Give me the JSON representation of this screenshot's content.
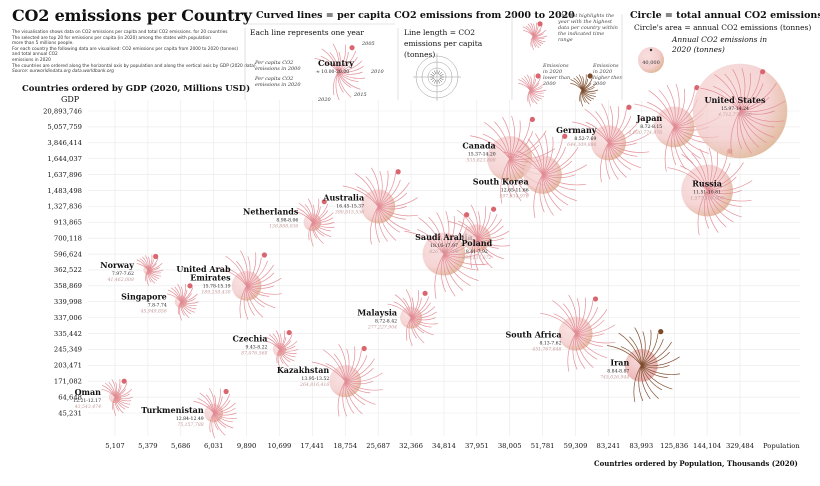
{
  "title": "CO2 emissions per Country",
  "description_lines": [
    "The visualisation shows data on CO2 emissions per capita and total CO2 emissions. for 20 countries",
    "The selected are top 20 for emissions per capita (in 2020) among the states with population",
    "more than 5 millions people.",
    "For each country the following data are visualised: CO2 emissions per capita from 2000 to 2020 (tonnes)",
    "and total annual CO2",
    "emissions in 2020",
    "The countries are ordered along the horizontal axis by population and along the vertical axis by GDP (2020 data)."
  ],
  "source": "Source: ourworldindata.org data.worldbank.org",
  "legend": {
    "curved_title": "Curved lines = per capita CO2 emissions from 2000 to 2020",
    "each_line": "Each line represents one year",
    "glyph_country": "Country",
    "glyph_range": "≈ 10.00-20.00",
    "glyph_2000_label": "Per capita CO2 emissions in 2000",
    "glyph_2020_label": "Per capita CO2 emissions in 2020",
    "years": [
      "2005",
      "2010",
      "2015",
      "2020"
    ],
    "line_length": "Line length = CO2 emissions per capita (tonnes)",
    "dot_note": "The dot highlights the year with the highest data per country within the indicated time range",
    "lower": "Emissions in 2020 lower than 2000",
    "higher": "Emissions in 2020 higher then 2000",
    "circle_title": "Circle = total annual CO2 emissions, 2020",
    "circle_area": "Circle's area = annual CO2 emissions (tonnes)",
    "annual_label": "Annual CO2 emissions in 2020 (tonnes)",
    "circle_example": "40,000"
  },
  "colors": {
    "pink": "#e28b93",
    "dark_dot": "#d9666f",
    "brown": "#7b4a2a",
    "tan": "#c9a079",
    "grid": "#e9e9e9"
  },
  "chart_data": {
    "type": "scatter",
    "title": "CO2 emissions per Country",
    "ylabel": "Countries ordered by GDP (2020, Millions USD)",
    "y_axis_label": "GDP",
    "xlabel": "Countries ordered by Population, Thousands (2020)",
    "x_axis_label": "Population",
    "x_ticks": [
      "5,107",
      "5,379",
      "5,686",
      "6,031",
      "9,890",
      "10,699",
      "17,441",
      "18,754",
      "25,687",
      "32,366",
      "34,814",
      "37,951",
      "38,005",
      "51,781",
      "59,309",
      "83,241",
      "83,993",
      "125,836",
      "144,104",
      "329,484"
    ],
    "y_ticks": [
      "45,231",
      "64,648",
      "171,082",
      "203,471",
      "245,349",
      "335,442",
      "337,006",
      "339,998",
      "358,869",
      "362,522",
      "596,624",
      "700,118",
      "913,865",
      "1,327,836",
      "1,483,498",
      "1,637,896",
      "1,644,037",
      "3,846,414",
      "5,057,759",
      "20,893,746"
    ],
    "countries": [
      {
        "name": "Oman",
        "range": "12.21-12.17",
        "total": "43,543,474",
        "x_rank": 0,
        "y_rank": 1,
        "size": 0.55,
        "trend": "lower"
      },
      {
        "name": "Norway",
        "range": "7.97-7.62",
        "total": "41,462,008",
        "x_rank": 1,
        "y_rank": 9,
        "size": 0.42,
        "trend": "lower"
      },
      {
        "name": "Singapore",
        "range": "7.8-7.74",
        "total": "45,949,856",
        "x_rank": 2,
        "y_rank": 7,
        "size": 0.55,
        "trend": "lower"
      },
      {
        "name": "Turkmenistan",
        "range": "12.84-12.49",
        "total": "75,157,788",
        "x_rank": 3,
        "y_rank": 0,
        "size": 0.85,
        "trend": "lower"
      },
      {
        "name": "United Arab Emirates",
        "range": "15.78-15.19",
        "total": "189,258,430",
        "x_rank": 4,
        "y_rank": 8,
        "size": 1.35,
        "trend": "lower"
      },
      {
        "name": "Czechia",
        "range": "9.43-8.22",
        "total": "87,076,568",
        "x_rank": 5,
        "y_rank": 4,
        "size": 0.6,
        "trend": "lower"
      },
      {
        "name": "Netherlands",
        "range": "8.98-8.06",
        "total": "138,888,036",
        "x_rank": 6,
        "y_rank": 12,
        "size": 0.8,
        "trend": "lower"
      },
      {
        "name": "Kazakhstan",
        "range": "13.95-13.52",
        "total": "264,816,416",
        "x_rank": 7,
        "y_rank": 2,
        "size": 1.45,
        "trend": "lower"
      },
      {
        "name": "Australia",
        "range": "16.45-15.37",
        "total": "390,815,536",
        "x_rank": 8,
        "y_rank": 13,
        "size": 1.55,
        "trend": "lower"
      },
      {
        "name": "Malaysia",
        "range": "8.72-8.42",
        "total": "277,227,904",
        "x_rank": 9,
        "y_rank": 6,
        "size": 1.0,
        "trend": "lower"
      },
      {
        "name": "Saudi Arabia",
        "range": "18.16-17.97",
        "total": "626,793,390",
        "x_rank": 10,
        "y_rank": 10,
        "size": 1.95,
        "trend": "lower"
      },
      {
        "name": "Poland",
        "range": "8.41-7.92",
        "total": "299,137,072",
        "x_rank": 11,
        "y_rank": 11,
        "size": 1.25,
        "trend": "lower"
      },
      {
        "name": "Canada",
        "range": "15.37-14.20",
        "total": "535,823,808",
        "x_rank": 12,
        "y_rank": 16,
        "size": 2.05,
        "trend": "lower"
      },
      {
        "name": "South Korea",
        "range": "12.65-11.66",
        "total": "597,634,976",
        "x_rank": 13,
        "y_rank": 15,
        "size": 1.75,
        "trend": "lower"
      },
      {
        "name": "South Africa",
        "range": "8.13-7.62",
        "total": "451,767,648",
        "x_rank": 14,
        "y_rank": 5,
        "size": 1.55,
        "trend": "lower"
      },
      {
        "name": "Germany",
        "range": "8.52-7.69",
        "total": "644,309,888",
        "x_rank": 15,
        "y_rank": 17,
        "size": 1.6,
        "trend": "lower"
      },
      {
        "name": "Iran",
        "range": "8.84-8.87",
        "total": "745,026,944",
        "x_rank": 16,
        "y_rank": 3,
        "size": 1.5,
        "trend": "higher"
      },
      {
        "name": "Japan",
        "range": "8.72-8.15",
        "total": "1,030,774,976",
        "x_rank": 17,
        "y_rank": 18,
        "size": 1.85,
        "trend": "lower"
      },
      {
        "name": "Russia",
        "range": "11.51-10.81",
        "total": "1,577,136,000",
        "x_rank": 18,
        "y_rank": 14,
        "size": 2.35,
        "trend": "lower"
      },
      {
        "name": "United States",
        "range": "15.97-14.24",
        "total": "4,712,770,560",
        "x_rank": 19,
        "y_rank": 19,
        "size": 4.3,
        "trend": "lower"
      }
    ]
  }
}
